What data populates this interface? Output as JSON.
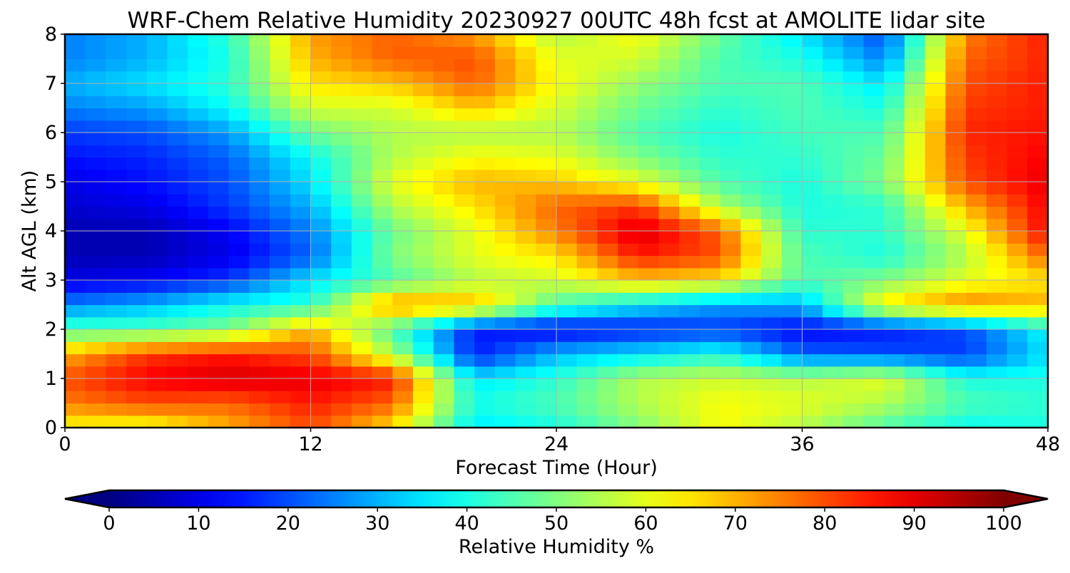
{
  "chart_data": {
    "type": "heatmap",
    "plot_style": "filled contour (time-height cross section)",
    "title": "WRF-Chem Relative Humidity 20230927 00UTC 48h fcst at AMOLITE lidar site",
    "xlabel": "Forecast Time (Hour)",
    "ylabel": "Alt AGL (km)",
    "xlim": [
      0,
      48
    ],
    "ylim": [
      0,
      8
    ],
    "x_ticks": [
      0,
      12,
      24,
      36,
      48
    ],
    "y_ticks": [
      0,
      1,
      2,
      3,
      4,
      5,
      6,
      7,
      8
    ],
    "grid": true,
    "grid_color": "#b0b0b0",
    "colormap": "jet",
    "colorbar": {
      "label": "Relative Humidity %",
      "orientation": "horizontal",
      "position": "bottom",
      "range": [
        0,
        100
      ],
      "ticks": [
        0,
        10,
        20,
        30,
        40,
        50,
        60,
        70,
        80,
        90,
        100
      ],
      "extend": "both"
    },
    "x": [
      0,
      4,
      8,
      12,
      16,
      20,
      24,
      28,
      32,
      36,
      40,
      44,
      48
    ],
    "y": [
      0,
      0.5,
      1,
      1.5,
      2,
      2.5,
      3,
      3.5,
      4,
      4.5,
      5,
      5.5,
      6,
      6.5,
      7,
      7.5,
      8
    ],
    "z": [
      [
        62,
        60,
        70,
        80,
        65,
        35,
        40,
        50,
        62,
        55,
        45,
        38,
        40
      ],
      [
        75,
        80,
        78,
        85,
        78,
        40,
        45,
        55,
        62,
        60,
        55,
        45,
        42
      ],
      [
        80,
        88,
        92,
        90,
        85,
        35,
        42,
        55,
        58,
        55,
        60,
        40,
        40
      ],
      [
        70,
        82,
        85,
        80,
        55,
        15,
        30,
        35,
        40,
        22,
        20,
        18,
        35
      ],
      [
        45,
        45,
        50,
        70,
        45,
        15,
        12,
        15,
        18,
        12,
        15,
        20,
        38
      ],
      [
        25,
        30,
        38,
        42,
        75,
        70,
        45,
        35,
        28,
        30,
        65,
        75,
        70
      ],
      [
        10,
        12,
        18,
        35,
        45,
        55,
        58,
        68,
        65,
        45,
        50,
        60,
        65
      ],
      [
        5,
        5,
        10,
        22,
        50,
        60,
        65,
        85,
        80,
        45,
        40,
        55,
        78
      ],
      [
        5,
        5,
        12,
        25,
        48,
        60,
        75,
        92,
        78,
        42,
        42,
        60,
        88
      ],
      [
        8,
        10,
        18,
        30,
        55,
        65,
        78,
        82,
        55,
        40,
        42,
        70,
        88
      ],
      [
        10,
        14,
        20,
        35,
        60,
        70,
        68,
        60,
        45,
        40,
        50,
        80,
        90
      ],
      [
        14,
        16,
        22,
        38,
        55,
        62,
        60,
        50,
        42,
        42,
        48,
        82,
        88
      ],
      [
        18,
        20,
        28,
        48,
        55,
        55,
        55,
        45,
        40,
        44,
        45,
        84,
        86
      ],
      [
        25,
        28,
        38,
        58,
        58,
        68,
        58,
        48,
        42,
        45,
        40,
        82,
        85
      ],
      [
        30,
        35,
        42,
        65,
        68,
        78,
        62,
        52,
        45,
        45,
        35,
        80,
        85
      ],
      [
        25,
        30,
        40,
        70,
        78,
        80,
        60,
        58,
        45,
        40,
        25,
        78,
        84
      ],
      [
        25,
        30,
        42,
        72,
        78,
        72,
        55,
        62,
        48,
        35,
        20,
        75,
        85
      ]
    ]
  }
}
